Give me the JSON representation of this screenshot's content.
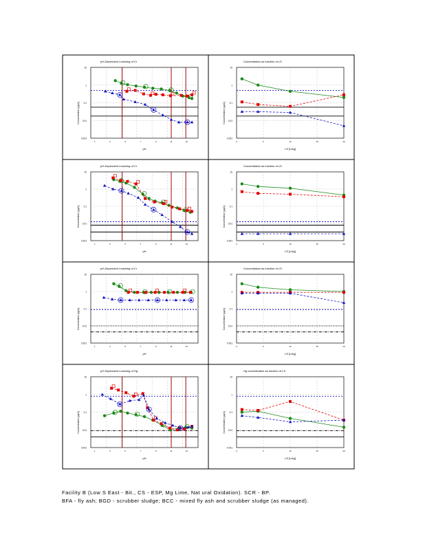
{
  "figure": {
    "colors": {
      "green": "#1a8a1a",
      "red": "#e00000",
      "blue": "#1010c0",
      "darkred": "#a00000",
      "frame": "#000000",
      "grid": "#bfbfbf"
    },
    "ph_labels": [
      "1",
      "2",
      "3",
      "4",
      "5",
      "6",
      "7",
      "8",
      "9",
      "10",
      "11",
      "12",
      "13",
      "14"
    ],
    "ls_labels": [
      "0",
      "5",
      "10",
      "15",
      "20"
    ],
    "rows": [
      {
        "left_title": "pH-Dependent Leaching of Cr",
        "right_title": "Concentration  as  function  of  LS",
        "ylabel": "Concentration [µg/L]",
        "left_xlabel": "pH",
        "right_xlabel": "LS  [L/kg]",
        "y_ticks": [
          "10",
          "1",
          "0.1",
          "0.01",
          "0.001"
        ]
      },
      {
        "left_title": "pH-Dependent Leaching of Cr",
        "right_title": "Concentration  as  function  of  LS",
        "ylabel": "Concentration [µg/L]",
        "left_xlabel": "pH",
        "right_xlabel": "LS  [L/kg]",
        "y_ticks": [
          "10",
          "1",
          "0.1",
          "0.01",
          "0.001"
        ]
      },
      {
        "left_title": "pH-Dependent Leaching of Cr",
        "right_title": "Concentration  as  function  of  LS",
        "ylabel": "Concentration [µg/L]",
        "left_xlabel": "pH",
        "right_xlabel": "LS  [L/kg]",
        "y_ticks": [
          "10",
          "1",
          "0.1",
          "0.01",
          "0.001"
        ]
      },
      {
        "left_title": "pH-Dependent Leaching of Hg",
        "right_title": "Hg  concentration  as  function  of  LS",
        "ylabel": "Concentration [µg/L]",
        "left_xlabel": "pH",
        "right_xlabel": "LS  [L/kg]",
        "y_ticks": [
          "10",
          "1",
          "0.1",
          "0.01",
          "0.001"
        ]
      }
    ]
  },
  "chart_data": [
    {
      "type": "scatter",
      "panel": "row1-left",
      "title": "pH-Dependent Leaching of Cr",
      "xlabel": "pH",
      "ylabel": "Concentration [µg/L]",
      "xlim": [
        0,
        14
      ],
      "ylim_log10": [
        -3,
        1
      ],
      "ph_range_lines": [
        4.1,
        10.5,
        12.4
      ],
      "reference_lines_log10": [
        {
          "y": -0.3,
          "style": "blue-dashed"
        },
        {
          "y": -1.25,
          "style": "black-solid"
        },
        {
          "y": -1.75,
          "style": "black-solid"
        }
      ],
      "series": [
        {
          "name": "green",
          "points": [
            [
              3.2,
              0.25
            ],
            [
              4.0,
              0.1
            ],
            [
              4.8,
              0.02
            ],
            [
              5.9,
              -0.05
            ],
            [
              7.0,
              -0.12
            ],
            [
              8.1,
              -0.18
            ],
            [
              9.2,
              -0.22
            ],
            [
              10.3,
              -0.31
            ],
            [
              11.2,
              -0.45
            ],
            [
              12.0,
              -0.62
            ],
            [
              12.8,
              -0.7
            ],
            [
              13.2,
              -0.76
            ]
          ]
        },
        {
          "name": "red",
          "points": [
            [
              4.7,
              -0.35
            ],
            [
              5.8,
              -0.3
            ],
            [
              6.9,
              -0.5
            ],
            [
              7.8,
              -0.58
            ],
            [
              8.5,
              -0.52
            ],
            [
              9.4,
              -0.55
            ],
            [
              10.4,
              -0.6
            ],
            [
              11.8,
              -0.58
            ],
            [
              12.6,
              -0.62
            ],
            [
              13.2,
              -0.55
            ]
          ]
        },
        {
          "name": "blue",
          "points": [
            [
              1.9,
              -0.35
            ],
            [
              2.8,
              -0.45
            ],
            [
              3.8,
              -0.55
            ],
            [
              4.3,
              -0.8
            ],
            [
              5.8,
              -0.95
            ],
            [
              7.1,
              -1.1
            ],
            [
              8.2,
              -1.4
            ],
            [
              9.4,
              -1.7
            ],
            [
              10.5,
              -1.95
            ],
            [
              11.5,
              -2.1
            ],
            [
              12.6,
              -2.1
            ],
            [
              13.2,
              -2.1
            ]
          ]
        }
      ]
    },
    {
      "type": "line",
      "panel": "row1-right",
      "title": "Concentration  as  function  of  LS",
      "xlabel": "LS  [L/kg]",
      "ylabel": "Concentration [µg/L]",
      "xlim": [
        0,
        20
      ],
      "ylim_log10": [
        -3,
        1
      ],
      "series": [
        {
          "name": "green",
          "x": [
            1,
            4,
            10,
            20
          ],
          "values_log10": [
            0.35,
            0.0,
            -0.35,
            -0.7
          ]
        },
        {
          "name": "red",
          "x": [
            1,
            4,
            10,
            20
          ],
          "values_log10": [
            -0.95,
            -1.1,
            -1.2,
            -0.55
          ]
        },
        {
          "name": "blue",
          "x": [
            1,
            4,
            10,
            20
          ],
          "values_log10": [
            -1.5,
            -1.5,
            -1.55,
            -2.3
          ]
        }
      ]
    },
    {
      "type": "scatter",
      "panel": "row2-left",
      "title": "pH-Dependent Leaching of Cr",
      "xlabel": "pH",
      "ylabel": "Concentration [µg/L]",
      "xlim": [
        0,
        14
      ],
      "ylim_log10": [
        -3,
        1
      ],
      "ph_range_lines": [
        4.1,
        10.5,
        12.4
      ],
      "reference_lines_log10": [
        {
          "y": -1.9,
          "style": "blue-dashed"
        },
        {
          "y": -2.1,
          "style": "black-solid"
        },
        {
          "y": -2.5,
          "style": "black-solid"
        }
      ],
      "series": [
        {
          "name": "green",
          "points": [
            [
              3.0,
              0.55
            ],
            [
              3.8,
              0.45
            ],
            [
              4.6,
              0.35
            ],
            [
              5.7,
              0.1
            ],
            [
              6.8,
              -0.3
            ],
            [
              7.6,
              -0.55
            ],
            [
              8.4,
              -0.7
            ],
            [
              9.3,
              -0.8
            ],
            [
              10.2,
              -0.95
            ],
            [
              11.3,
              -1.1
            ],
            [
              12.2,
              -1.25
            ],
            [
              13.0,
              -1.35
            ]
          ]
        },
        {
          "name": "red",
          "points": [
            [
              2.9,
              0.65
            ],
            [
              3.9,
              0.5
            ],
            [
              4.8,
              0.45
            ],
            [
              5.9,
              0.3
            ],
            [
              7.1,
              -0.55
            ],
            [
              8.3,
              -0.75
            ],
            [
              9.5,
              -0.85
            ],
            [
              10.6,
              -1.05
            ],
            [
              11.6,
              -1.15
            ],
            [
              12.6,
              -1.25
            ],
            [
              13.2,
              -1.3
            ]
          ]
        },
        {
          "name": "blue",
          "points": [
            [
              1.8,
              0.2
            ],
            [
              2.9,
              0.0
            ],
            [
              4.0,
              -0.1
            ],
            [
              4.9,
              -0.25
            ],
            [
              6.2,
              -0.5
            ],
            [
              7.1,
              -0.9
            ],
            [
              8.2,
              -1.2
            ],
            [
              9.3,
              -1.5
            ],
            [
              10.6,
              -1.9
            ],
            [
              11.7,
              -2.2
            ],
            [
              12.6,
              -2.5
            ],
            [
              13.2,
              -2.6
            ]
          ]
        }
      ]
    },
    {
      "type": "line",
      "panel": "row2-right",
      "title": "Concentration  as  function  of  LS",
      "xlabel": "LS  [L/kg]",
      "ylabel": "Concentration [µg/L]",
      "xlim": [
        0,
        20
      ],
      "ylim_log10": [
        -3,
        1
      ],
      "series": [
        {
          "name": "green",
          "x": [
            1,
            4,
            10,
            20
          ],
          "values_log10": [
            0.3,
            0.15,
            0.05,
            -0.35
          ]
        },
        {
          "name": "red",
          "x": [
            1,
            4,
            10,
            20
          ],
          "values_log10": [
            -0.15,
            -0.25,
            -0.3,
            -0.45
          ]
        },
        {
          "name": "blue",
          "x": [
            1,
            4,
            10,
            20
          ],
          "values_log10": [
            -2.6,
            -2.6,
            -2.6,
            -2.6
          ]
        }
      ]
    },
    {
      "type": "scatter",
      "panel": "row3-left",
      "title": "pH-Dependent Leaching of Cr",
      "xlabel": "pH",
      "ylabel": "Concentration [µg/L]",
      "xlim": [
        0,
        14
      ],
      "ylim_log10": [
        -3,
        1
      ],
      "ph_range_lines": [],
      "reference_lines_log10": [
        {
          "y": -1.05,
          "style": "blue-dashed"
        },
        {
          "y": -2.0,
          "style": "black-dotted"
        },
        {
          "y": -2.35,
          "style": "black-dashdot"
        }
      ],
      "series": [
        {
          "name": "green",
          "points": [
            [
              3.0,
              0.45
            ],
            [
              3.7,
              0.3
            ],
            [
              4.6,
              0.05
            ],
            [
              5.7,
              -0.05
            ],
            [
              6.9,
              -0.05
            ],
            [
              7.9,
              -0.05
            ],
            [
              8.9,
              -0.05
            ],
            [
              10.1,
              -0.05
            ],
            [
              11.3,
              -0.05
            ],
            [
              12.3,
              -0.05
            ],
            [
              13.1,
              -0.05
            ]
          ]
        },
        {
          "name": "red",
          "points": [
            [
              4.9,
              -0.05
            ],
            [
              6.1,
              -0.05
            ],
            [
              7.2,
              -0.05
            ],
            [
              8.4,
              -0.05
            ],
            [
              9.6,
              -0.05
            ],
            [
              10.8,
              -0.05
            ],
            [
              12.0,
              -0.05
            ],
            [
              13.0,
              -0.05
            ]
          ]
        },
        {
          "name": "blue",
          "points": [
            [
              1.7,
              -0.35
            ],
            [
              2.8,
              -0.45
            ],
            [
              3.9,
              -0.5
            ],
            [
              5.1,
              -0.5
            ],
            [
              6.3,
              -0.5
            ],
            [
              7.5,
              -0.5
            ],
            [
              8.7,
              -0.5
            ],
            [
              9.9,
              -0.5
            ],
            [
              11.1,
              -0.5
            ],
            [
              12.2,
              -0.5
            ],
            [
              13.1,
              -0.5
            ]
          ]
        }
      ]
    },
    {
      "type": "line",
      "panel": "row3-right",
      "title": "Concentration  as  function  of  LS",
      "xlabel": "LS  [L/kg]",
      "ylabel": "Concentration [µg/L]",
      "xlim": [
        0,
        20
      ],
      "ylim_log10": [
        -3,
        1
      ],
      "series": [
        {
          "name": "green",
          "x": [
            1,
            4,
            10,
            20
          ],
          "values_log10": [
            0.45,
            0.25,
            0.1,
            0.0
          ]
        },
        {
          "name": "red",
          "x": [
            1,
            4,
            10,
            20
          ],
          "values_log10": [
            -0.05,
            -0.05,
            -0.05,
            -0.05
          ]
        },
        {
          "name": "blue",
          "x": [
            1,
            4,
            10,
            20
          ],
          "values_log10": [
            -0.1,
            -0.1,
            -0.1,
            -0.65
          ]
        }
      ]
    },
    {
      "type": "scatter",
      "panel": "row4-left",
      "title": "pH-Dependent Leaching of Hg",
      "xlabel": "pH",
      "ylabel": "Concentration [µg/L]",
      "xlim": [
        0,
        14
      ],
      "ylim_log10": [
        -3,
        1
      ],
      "ph_range_lines": [
        4.1,
        10.5,
        12.4
      ],
      "reference_lines_log10": [
        {
          "y": -0.1,
          "style": "blue-dashed"
        },
        {
          "y": -2.05,
          "style": "black-dashdot"
        },
        {
          "y": -2.4,
          "style": "black-solid"
        }
      ],
      "series": [
        {
          "name": "green",
          "points": [
            [
              1.8,
              -1.2
            ],
            [
              3.0,
              -1.05
            ],
            [
              3.9,
              -0.95
            ],
            [
              4.8,
              -1.05
            ],
            [
              5.9,
              -1.15
            ],
            [
              7.0,
              -1.25
            ],
            [
              8.1,
              -1.45
            ],
            [
              9.3,
              -1.75
            ],
            [
              10.4,
              -2.0
            ],
            [
              11.5,
              -1.9
            ],
            [
              12.4,
              -1.85
            ],
            [
              13.2,
              -1.9
            ]
          ]
        },
        {
          "name": "red",
          "points": [
            [
              2.7,
              0.35
            ],
            [
              3.6,
              0.25
            ],
            [
              4.6,
              0.1
            ],
            [
              5.6,
              -0.1
            ],
            [
              6.8,
              0.05
            ],
            [
              7.4,
              -0.75
            ],
            [
              8.2,
              -1.45
            ],
            [
              9.2,
              -1.65
            ],
            [
              10.3,
              -1.9
            ],
            [
              11.3,
              -2.0
            ],
            [
              12.2,
              -1.95
            ],
            [
              13.2,
              -1.8
            ]
          ]
        },
        {
          "name": "blue",
          "points": [
            [
              1.5,
              0.0
            ],
            [
              2.6,
              -0.25
            ],
            [
              3.8,
              -0.55
            ],
            [
              5.1,
              -0.35
            ],
            [
              6.3,
              -0.3
            ],
            [
              6.9,
              -0.05
            ],
            [
              7.6,
              -0.85
            ],
            [
              8.6,
              -1.35
            ],
            [
              9.7,
              -1.6
            ],
            [
              10.7,
              -1.75
            ],
            [
              11.7,
              -1.9
            ],
            [
              12.7,
              -1.85
            ],
            [
              13.2,
              -1.8
            ]
          ]
        }
      ]
    },
    {
      "type": "line",
      "panel": "row4-right",
      "title": "Hg  concentration  as  function  of  LS",
      "xlabel": "LS  [L/kg]",
      "ylabel": "Concentration [µg/L]",
      "xlim": [
        0,
        20
      ],
      "ylim_log10": [
        -3,
        1
      ],
      "series": [
        {
          "name": "green",
          "x": [
            1,
            4,
            10,
            20
          ],
          "values_log10": [
            -1.0,
            -0.95,
            -1.35,
            -1.85
          ]
        },
        {
          "name": "red",
          "x": [
            1,
            4,
            10,
            20
          ],
          "values_log10": [
            -0.85,
            -0.9,
            -0.4,
            -1.45
          ]
        },
        {
          "name": "blue",
          "x": [
            1,
            4,
            10,
            20
          ],
          "values_log10": [
            -1.2,
            -1.3,
            -1.55,
            -1.45
          ]
        }
      ]
    }
  ],
  "caption": {
    "line1": "Facility      B  (Low    S  East  - Bit.,    CS  - ESP,      Mg    Lime,      Nat ural   Oxidation).        SCR   -  BP.",
    "line2": "BFA  - fly   ash;   BGD   - scrubber     sludge;    BCC   - mixed     fly  ash  and   scrubber    sludge    (as   managed)."
  }
}
